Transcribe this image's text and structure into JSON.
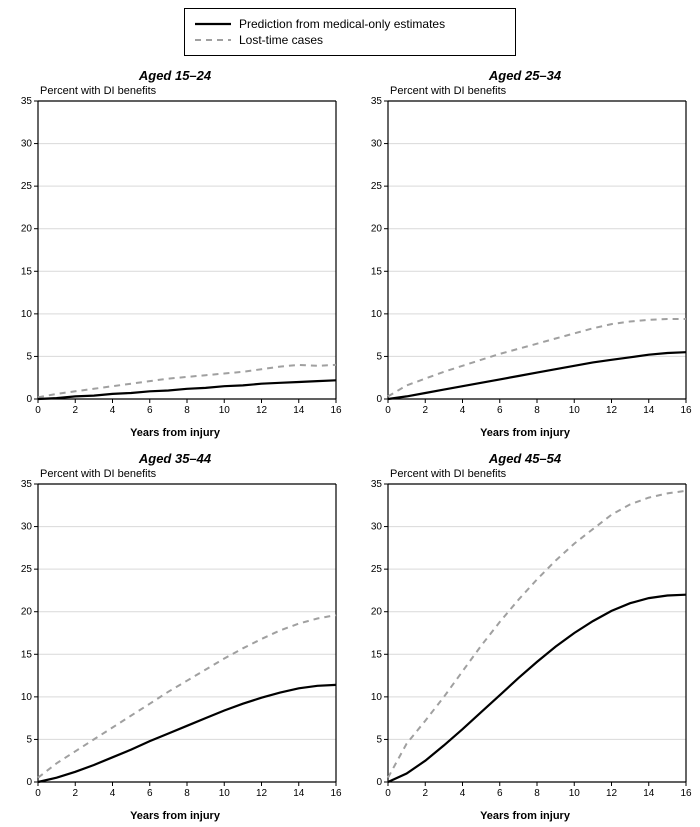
{
  "legend": {
    "series1": "Prediction from medical-only estimates",
    "series2": "Lost-time cases"
  },
  "global": {
    "ylabel": "Percent with DI benefits",
    "xlabel": "Years from injury",
    "xlim": [
      0,
      16
    ],
    "ylim": [
      0,
      35
    ],
    "xtick_step": 2,
    "ytick_step": 5,
    "background": "#ffffff",
    "grid_color": "#d9d9d9",
    "series1_color": "#000000",
    "series1_width": 2.2,
    "series1_dash": "",
    "series2_color": "#a0a0a0",
    "series2_width": 2.0,
    "series2_dash": "6,5"
  },
  "panels": [
    {
      "title": "Aged 15–24",
      "key": "p15",
      "series1": [
        [
          0,
          0
        ],
        [
          1,
          0.1
        ],
        [
          2,
          0.3
        ],
        [
          3,
          0.4
        ],
        [
          4,
          0.6
        ],
        [
          5,
          0.7
        ],
        [
          6,
          0.9
        ],
        [
          7,
          1.0
        ],
        [
          8,
          1.2
        ],
        [
          9,
          1.3
        ],
        [
          10,
          1.5
        ],
        [
          11,
          1.6
        ],
        [
          12,
          1.8
        ],
        [
          13,
          1.9
        ],
        [
          14,
          2.0
        ],
        [
          15,
          2.1
        ],
        [
          16,
          2.2
        ]
      ],
      "series2": [
        [
          0,
          0.2
        ],
        [
          1,
          0.6
        ],
        [
          2,
          0.9
        ],
        [
          3,
          1.2
        ],
        [
          4,
          1.5
        ],
        [
          5,
          1.8
        ],
        [
          6,
          2.1
        ],
        [
          7,
          2.4
        ],
        [
          8,
          2.6
        ],
        [
          9,
          2.8
        ],
        [
          10,
          3.0
        ],
        [
          11,
          3.2
        ],
        [
          12,
          3.5
        ],
        [
          13,
          3.8
        ],
        [
          14,
          4.0
        ],
        [
          15,
          3.9
        ],
        [
          16,
          4.0
        ]
      ]
    },
    {
      "title": "Aged 25–34",
      "key": "p25",
      "series1": [
        [
          0,
          0
        ],
        [
          1,
          0.3
        ],
        [
          2,
          0.7
        ],
        [
          3,
          1.1
        ],
        [
          4,
          1.5
        ],
        [
          5,
          1.9
        ],
        [
          6,
          2.3
        ],
        [
          7,
          2.7
        ],
        [
          8,
          3.1
        ],
        [
          9,
          3.5
        ],
        [
          10,
          3.9
        ],
        [
          11,
          4.3
        ],
        [
          12,
          4.6
        ],
        [
          13,
          4.9
        ],
        [
          14,
          5.2
        ],
        [
          15,
          5.4
        ],
        [
          16,
          5.5
        ]
      ],
      "series2": [
        [
          0,
          0.3
        ],
        [
          1,
          1.6
        ],
        [
          2,
          2.4
        ],
        [
          3,
          3.2
        ],
        [
          4,
          3.9
        ],
        [
          5,
          4.6
        ],
        [
          6,
          5.3
        ],
        [
          7,
          5.9
        ],
        [
          8,
          6.5
        ],
        [
          9,
          7.1
        ],
        [
          10,
          7.7
        ],
        [
          11,
          8.3
        ],
        [
          12,
          8.8
        ],
        [
          13,
          9.1
        ],
        [
          14,
          9.3
        ],
        [
          15,
          9.4
        ],
        [
          16,
          9.4
        ]
      ]
    },
    {
      "title": "Aged 35–44",
      "key": "p35",
      "series1": [
        [
          0,
          0
        ],
        [
          1,
          0.5
        ],
        [
          2,
          1.2
        ],
        [
          3,
          2.0
        ],
        [
          4,
          2.9
        ],
        [
          5,
          3.8
        ],
        [
          6,
          4.8
        ],
        [
          7,
          5.7
        ],
        [
          8,
          6.6
        ],
        [
          9,
          7.5
        ],
        [
          10,
          8.4
        ],
        [
          11,
          9.2
        ],
        [
          12,
          9.9
        ],
        [
          13,
          10.5
        ],
        [
          14,
          11.0
        ],
        [
          15,
          11.3
        ],
        [
          16,
          11.4
        ]
      ],
      "series2": [
        [
          0,
          0.5
        ],
        [
          1,
          2.2
        ],
        [
          2,
          3.6
        ],
        [
          3,
          5.0
        ],
        [
          4,
          6.4
        ],
        [
          5,
          7.8
        ],
        [
          6,
          9.2
        ],
        [
          7,
          10.6
        ],
        [
          8,
          11.9
        ],
        [
          9,
          13.2
        ],
        [
          10,
          14.5
        ],
        [
          11,
          15.7
        ],
        [
          12,
          16.8
        ],
        [
          13,
          17.8
        ],
        [
          14,
          18.6
        ],
        [
          15,
          19.2
        ],
        [
          16,
          19.6
        ]
      ]
    },
    {
      "title": "Aged 45–54",
      "key": "p45",
      "series1": [
        [
          0,
          0
        ],
        [
          1,
          1.0
        ],
        [
          2,
          2.5
        ],
        [
          3,
          4.3
        ],
        [
          4,
          6.2
        ],
        [
          5,
          8.2
        ],
        [
          6,
          10.2
        ],
        [
          7,
          12.2
        ],
        [
          8,
          14.1
        ],
        [
          9,
          15.9
        ],
        [
          10,
          17.5
        ],
        [
          11,
          18.9
        ],
        [
          12,
          20.1
        ],
        [
          13,
          21.0
        ],
        [
          14,
          21.6
        ],
        [
          15,
          21.9
        ],
        [
          16,
          22.0
        ]
      ],
      "series2": [
        [
          0,
          0.5
        ],
        [
          1,
          4.5
        ],
        [
          2,
          7.2
        ],
        [
          3,
          10.0
        ],
        [
          4,
          13.0
        ],
        [
          5,
          16.0
        ],
        [
          6,
          18.8
        ],
        [
          7,
          21.4
        ],
        [
          8,
          23.8
        ],
        [
          9,
          26.0
        ],
        [
          10,
          28.0
        ],
        [
          11,
          29.7
        ],
        [
          12,
          31.4
        ],
        [
          13,
          32.6
        ],
        [
          14,
          33.4
        ],
        [
          15,
          33.9
        ],
        [
          16,
          34.2
        ]
      ]
    }
  ]
}
